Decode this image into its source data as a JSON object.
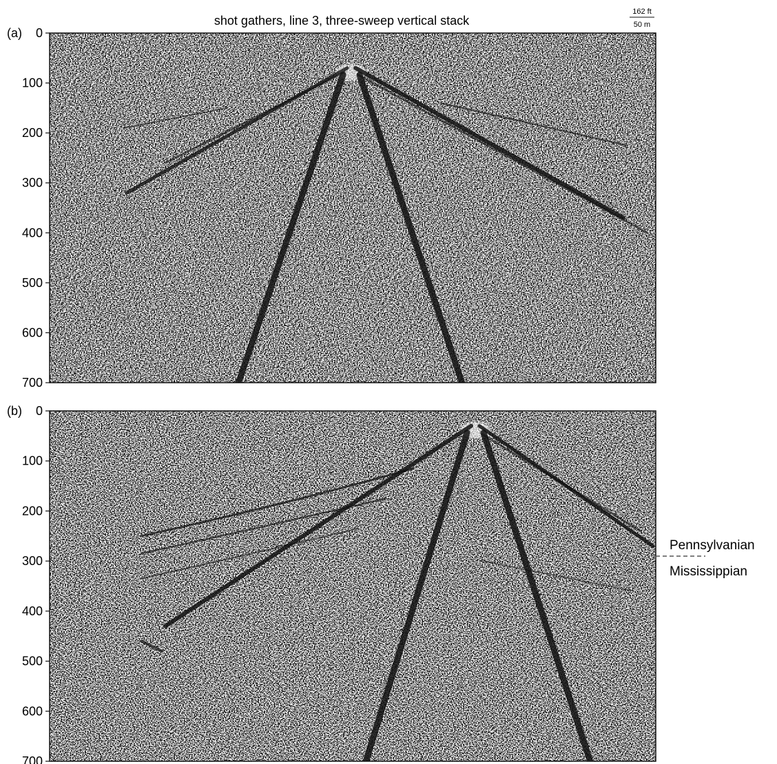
{
  "figure": {
    "title": "shot gathers, line 3, three-sweep vertical stack",
    "scale_bar": {
      "top": "162 ft",
      "bottom": "50 m"
    },
    "y_ticks": [
      "0",
      "100",
      "200",
      "300",
      "400",
      "500",
      "600",
      "700"
    ],
    "y_range": [
      0,
      700
    ],
    "panels": [
      {
        "label": "(a)",
        "apex_time": 70,
        "left_apex_shift": 0
      },
      {
        "label": "(b)",
        "apex_time": 30,
        "left_apex_shift": 0
      }
    ],
    "boundary_labels": {
      "upper": "Pennsylvanian",
      "lower": "Mississippian",
      "time": 290
    },
    "colors": {
      "ink": "#111111",
      "paper": "#ffffff",
      "noise_light": "#f4f4f4"
    }
  }
}
